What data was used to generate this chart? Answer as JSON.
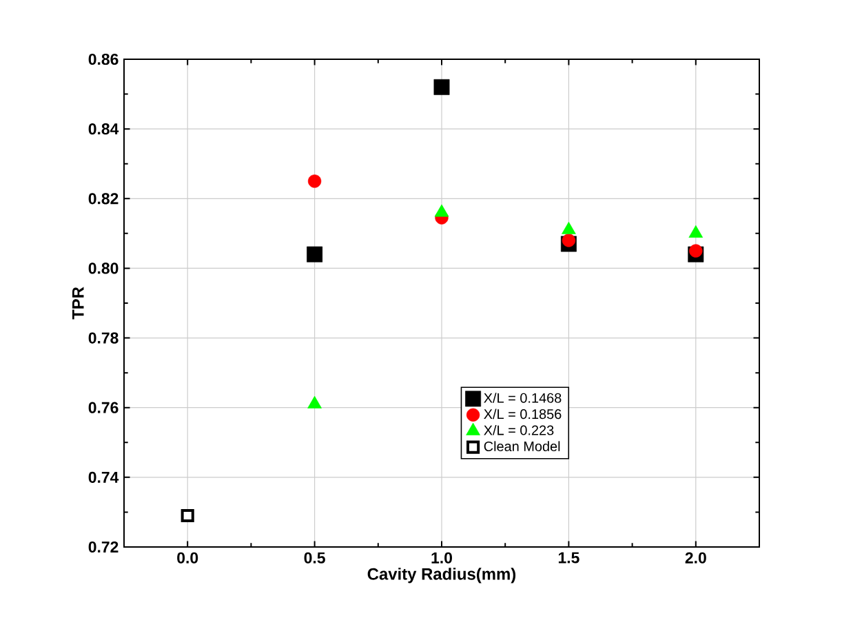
{
  "chart_data": {
    "type": "scatter",
    "xlabel": "Cavity Radius(mm)",
    "ylabel": "TPR",
    "x": [
      0.0,
      0.5,
      1.0,
      1.5,
      2.0
    ],
    "xlim": [
      -0.25,
      2.25
    ],
    "xticks": [
      {
        "value": 0.0,
        "label": "0.0"
      },
      {
        "value": 0.5,
        "label": "0.5"
      },
      {
        "value": 1.0,
        "label": "1.0"
      },
      {
        "value": 1.5,
        "label": "1.5"
      },
      {
        "value": 2.0,
        "label": "2.0"
      }
    ],
    "ylim": [
      0.72,
      0.86
    ],
    "yticks": [
      {
        "value": 0.72,
        "label": "0.72"
      },
      {
        "value": 0.74,
        "label": "0.74"
      },
      {
        "value": 0.76,
        "label": "0.76"
      },
      {
        "value": 0.78,
        "label": "0.78"
      },
      {
        "value": 0.8,
        "label": "0.80"
      },
      {
        "value": 0.82,
        "label": "0.82"
      },
      {
        "value": 0.84,
        "label": "0.84"
      },
      {
        "value": 0.86,
        "label": "0.86"
      }
    ],
    "grid": true,
    "legend": "bottom right",
    "series": [
      {
        "name": "X/L = 0.1468",
        "color": "#000000",
        "marker": "square",
        "values": [
          null,
          0.804,
          0.852,
          0.807,
          0.804
        ]
      },
      {
        "name": "X/L = 0.1856",
        "color": "#ff0000",
        "marker": "circle",
        "values": [
          null,
          0.825,
          0.8145,
          0.808,
          0.805
        ]
      },
      {
        "name": "X/L = 0.223",
        "color": "#00ff00",
        "marker": "triangle",
        "values": [
          null,
          0.761,
          0.816,
          0.811,
          0.81
        ]
      },
      {
        "name": "Clean Model",
        "color": "#ffffff",
        "marker": "square",
        "values": [
          0.729,
          null,
          null,
          null,
          null
        ]
      }
    ]
  }
}
